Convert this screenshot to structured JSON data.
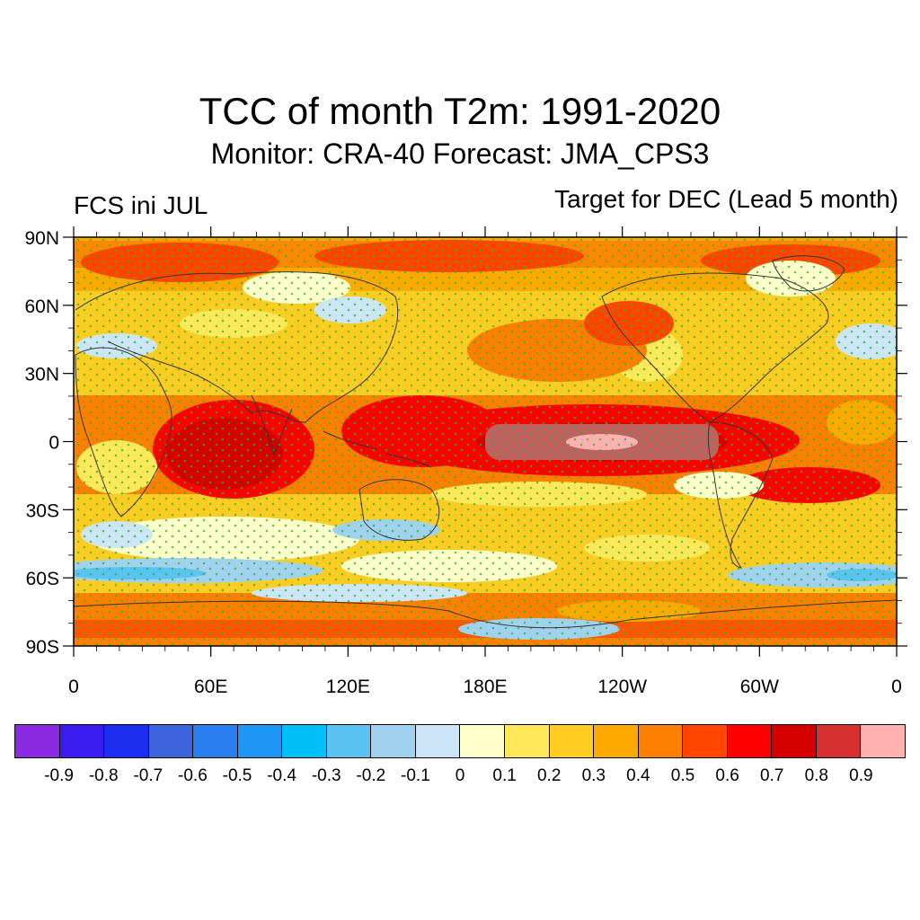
{
  "header": {
    "title": "TCC of month T2m: 1991-2020",
    "subtitle": "Monitor: CRA-40   Forecast: JMA_CPS3",
    "left_label": "FCS ini JUL",
    "right_label": "Target for DEC (Lead 5 month)"
  },
  "map": {
    "projection": "cylindrical-equidistant",
    "lon_range": [
      0,
      360
    ],
    "lat_range": [
      -90,
      90
    ],
    "lat_ticks": [
      "90N",
      "60N",
      "30N",
      "0",
      "30S",
      "60S",
      "90S"
    ],
    "lon_ticks": [
      "0",
      "60E",
      "120E",
      "180E",
      "120W",
      "60W",
      "0"
    ],
    "stippling": "green dots mark significant correlation",
    "stipple_color": "#22bb22",
    "coastline_color": "#333333"
  },
  "colorbar": {
    "colors": [
      "#8a2be2",
      "#3a1cf0",
      "#1e2ef0",
      "#3d64dc",
      "#2b7ef0",
      "#1e96f5",
      "#00c0f8",
      "#5bc3f2",
      "#a0d2ef",
      "#cce6f7",
      "#ffffcc",
      "#ffe85a",
      "#ffcc22",
      "#ffaa00",
      "#ff7f00",
      "#ff4500",
      "#ff0000",
      "#d40000",
      "#d63030",
      "#ffb0b0"
    ],
    "labels": [
      "-0.9",
      "-0.8",
      "-0.7",
      "-0.6",
      "-0.5",
      "-0.4",
      "-0.3",
      "-0.2",
      "-0.1",
      "0",
      "0.1",
      "0.2",
      "0.3",
      "0.4",
      "0.5",
      "0.6",
      "0.7",
      "0.8",
      "0.9"
    ]
  }
}
